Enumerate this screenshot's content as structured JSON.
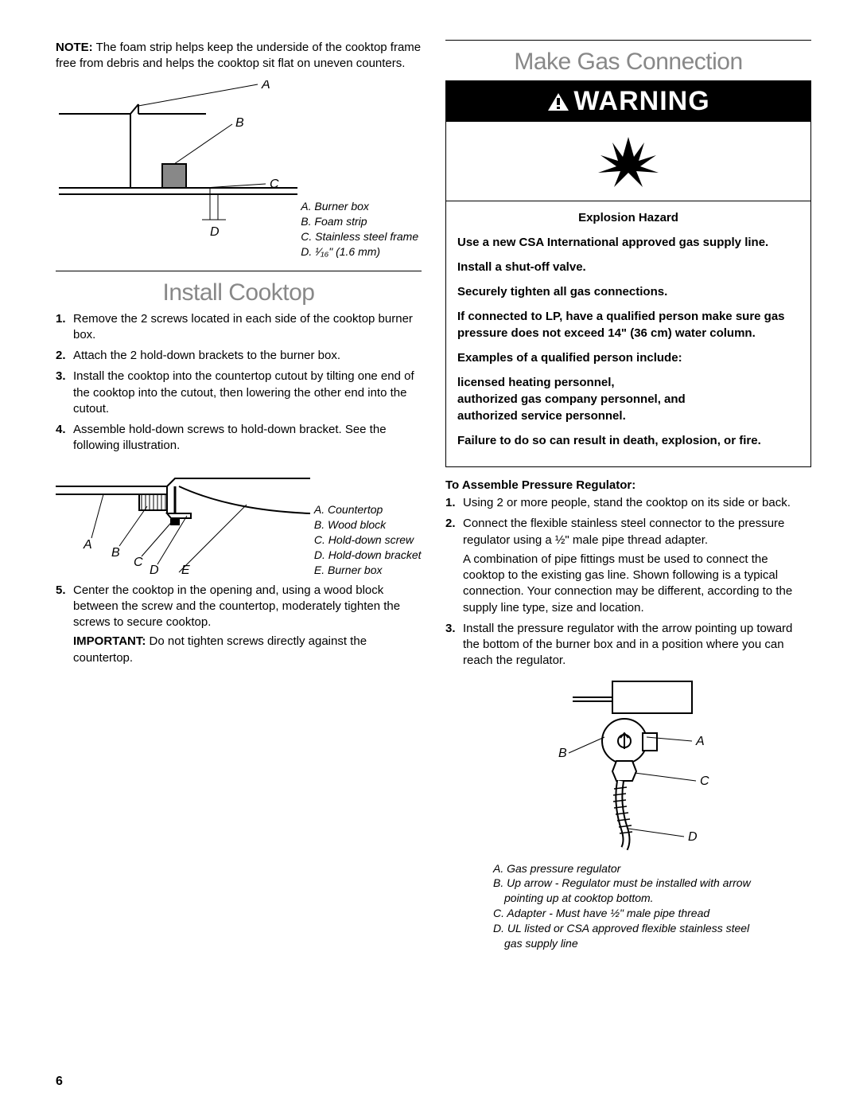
{
  "pageNumber": "6",
  "left": {
    "noteLabel": "NOTE:",
    "noteText": " The foam strip helps keep the underside of the cooktop frame free from debris and helps the cooktop sit flat on uneven counters.",
    "diagram1": {
      "labels": {
        "A": "A",
        "B": "B",
        "C": "C",
        "D": "D"
      },
      "caption": [
        "A. Burner box",
        "B. Foam strip",
        "C. Stainless steel frame",
        "D. ¹⁄₁₆\" (1.6 mm)"
      ]
    },
    "sectionTitle": "Install Cooktop",
    "steps": [
      "Remove the 2 screws located in each side of the cooktop burner box.",
      "Attach the 2 hold-down brackets to the burner box.",
      "Install the cooktop into the countertop cutout by tilting one end of the cooktop into the cutout, then lowering the other end into the cutout.",
      "Assemble hold-down screws to hold-down bracket. See the following illustration."
    ],
    "diagram2": {
      "labels": {
        "A": "A",
        "B": "B",
        "C": "C",
        "D": "D",
        "E": "E"
      },
      "caption": [
        "A. Countertop",
        "B. Wood block",
        "C. Hold-down screw",
        "D. Hold-down bracket",
        "E. Burner box"
      ]
    },
    "step5": "Center the cooktop in the opening and, using a wood block between the screw and the countertop, moderately tighten the screws to secure cooktop.",
    "importantLabel": "IMPORTANT:",
    "importantText": " Do not tighten screws directly against the countertop."
  },
  "right": {
    "sectionTitle": "Make Gas Connection",
    "warningWord": "WARNING",
    "warning": {
      "hazard": "Explosion Hazard",
      "lines": [
        "Use a new CSA International approved gas supply line.",
        "Install a shut-off valve.",
        "Securely tighten all gas connections.",
        "If connected to LP, have a qualified person make sure gas pressure does not exceed 14\" (36 cm) water column.",
        "Examples of a qualified person include:"
      ],
      "qualified": "licensed heating personnel,\nauthorized gas company personnel, and\nauthorized service personnel.",
      "failure": "Failure to do so can result in death, explosion, or fire."
    },
    "subheading": "To Assemble Pressure Regulator:",
    "steps": [
      {
        "text": "Using 2 or more people, stand the cooktop on its side or back."
      },
      {
        "text": "Connect the flexible stainless steel connector to the pressure regulator using a ½\" male pipe thread adapter.",
        "extra": "A combination of pipe fittings must be used to connect the cooktop to the existing gas line. Shown following is a typical connection. Your connection may be different, according to the supply line type, size and location."
      },
      {
        "text": "Install the pressure regulator with the arrow pointing up toward the bottom of the burner box and in a position where you can reach the regulator."
      }
    ],
    "diagram3": {
      "labels": {
        "A": "A",
        "B": "B",
        "C": "C",
        "D": "D"
      },
      "caption": [
        "A. Gas pressure regulator",
        "B. Up arrow - Regulator must be installed with arrow pointing up at cooktop bottom.",
        "C. Adapter - Must have ½\" male pipe thread",
        "D. UL listed or CSA approved flexible stainless steel gas supply line"
      ]
    }
  }
}
